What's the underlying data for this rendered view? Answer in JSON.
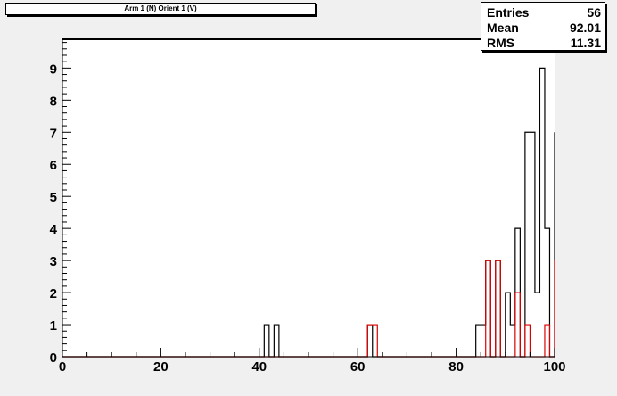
{
  "title": "Arm 1 (N) Orient 1 (V)",
  "stats": [
    {
      "label": "Entries",
      "value": "56"
    },
    {
      "label": "Mean",
      "value": "92.01"
    },
    {
      "label": "RMS",
      "value": "11.31"
    }
  ],
  "chart_data": {
    "type": "bar",
    "xlim": [
      0,
      100
    ],
    "ylim": [
      0,
      9.9
    ],
    "bin_width": 1,
    "xticks": [
      0,
      20,
      40,
      60,
      80,
      100
    ],
    "yticks": [
      0,
      1,
      2,
      3,
      4,
      5,
      6,
      7,
      8,
      9
    ],
    "grid": false,
    "colors": {
      "black": "#000000",
      "red": "#dd0000"
    },
    "series": [
      {
        "color": "#000000",
        "values": [
          0,
          0,
          0,
          0,
          0,
          0,
          0,
          0,
          0,
          0,
          0,
          0,
          0,
          0,
          0,
          0,
          0,
          0,
          0,
          0,
          0,
          0,
          0,
          0,
          0,
          0,
          0,
          0,
          0,
          0,
          0,
          0,
          0,
          0,
          0,
          0,
          0,
          0,
          0,
          0,
          0,
          1,
          0,
          1,
          0,
          0,
          0,
          0,
          0,
          0,
          0,
          0,
          0,
          0,
          0,
          0,
          0,
          0,
          0,
          0,
          0,
          0,
          1,
          0,
          0,
          0,
          0,
          0,
          0,
          0,
          0,
          0,
          0,
          0,
          0,
          0,
          0,
          0,
          0,
          0,
          0,
          0,
          0,
          0,
          1,
          1,
          3,
          0,
          3,
          0,
          2,
          1,
          4,
          0,
          7,
          7,
          2,
          9,
          4,
          0,
          7
        ]
      },
      {
        "color": "#dd0000",
        "values": [
          0,
          0,
          0,
          0,
          0,
          0,
          0,
          0,
          0,
          0,
          0,
          0,
          0,
          0,
          0,
          0,
          0,
          0,
          0,
          0,
          0,
          0,
          0,
          0,
          0,
          0,
          0,
          0,
          0,
          0,
          0,
          0,
          0,
          0,
          0,
          0,
          0,
          0,
          0,
          0,
          0,
          0,
          0,
          0,
          0,
          0,
          0,
          0,
          0,
          0,
          0,
          0,
          0,
          0,
          0,
          0,
          0,
          0,
          0,
          0,
          0,
          0,
          1,
          1,
          0,
          0,
          0,
          0,
          0,
          0,
          0,
          0,
          0,
          0,
          0,
          0,
          0,
          0,
          0,
          0,
          0,
          0,
          0,
          0,
          0,
          0,
          3,
          0,
          3,
          0,
          0,
          0,
          2,
          0,
          1,
          0,
          0,
          0,
          1,
          0,
          3
        ]
      }
    ]
  }
}
